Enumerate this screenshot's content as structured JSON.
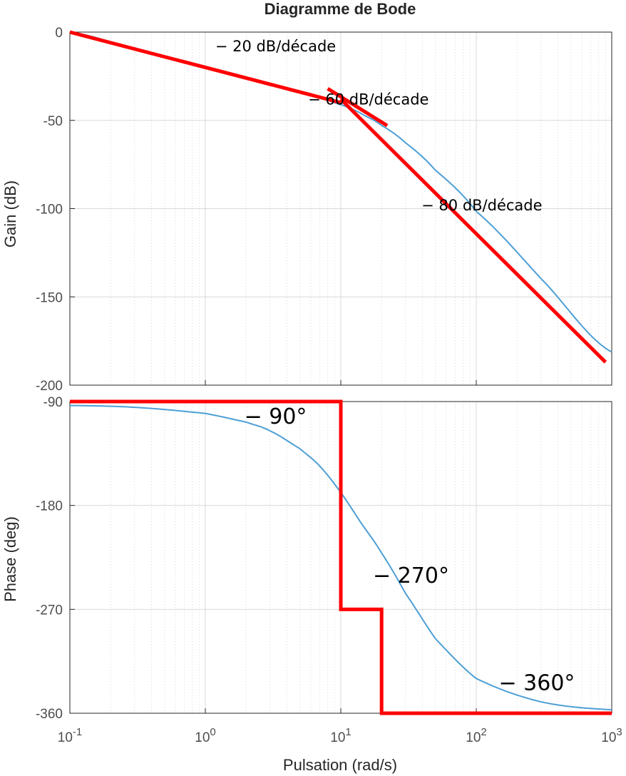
{
  "chart_data": {
    "type": "line",
    "title": "Diagramme de Bode",
    "xlabel": "Pulsation  (rad/s)",
    "x_scale": "log",
    "xlim": [
      0.1,
      1000
    ],
    "x_ticks": [
      {
        "value": 0.1,
        "base": "10",
        "exp": "-1"
      },
      {
        "value": 1,
        "base": "10",
        "exp": "0"
      },
      {
        "value": 10,
        "base": "10",
        "exp": "1"
      },
      {
        "value": 100,
        "base": "10",
        "exp": "2"
      },
      {
        "value": 1000,
        "base": "10",
        "exp": "3"
      }
    ],
    "grid": true,
    "colors": {
      "response": "#4d9fd6",
      "asymptote": "#ff0000",
      "grid": "#d9d9d9",
      "axes": "#262626"
    },
    "panels": [
      {
        "id": "gain",
        "ylabel": "Gain (dB)",
        "ylim": [
          -200,
          0
        ],
        "y_ticks": [
          {
            "value": 0,
            "label": "0"
          },
          {
            "value": -50,
            "label": "-50"
          },
          {
            "value": -100,
            "label": "-100"
          },
          {
            "value": -150,
            "label": "-150"
          },
          {
            "value": -200,
            "label": "-200"
          }
        ],
        "series": [
          {
            "kind": "response",
            "x": [
              0.1,
              0.3,
              1,
              3,
              6,
              8,
              10,
              12,
              15,
              20,
              30,
              50,
              100,
              300,
              1000
            ],
            "y": [
              0,
              -9.5,
              -20,
              -29.6,
              -35.8,
              -38.6,
              -41.1,
              -43.5,
              -47.3,
              -52.9,
              -62.7,
              -78.3,
              -101.6,
              -139.6,
              -181.2
            ]
          },
          {
            "kind": "asymptote",
            "x": [
              0.1,
              10
            ],
            "y": [
              0,
              -40
            ]
          },
          {
            "kind": "asymptote",
            "x": [
              8,
              22
            ],
            "y": [
              -32,
              -53
            ]
          },
          {
            "kind": "asymptote",
            "x": [
              10,
              900
            ],
            "y": [
              -38,
              -187
            ]
          }
        ],
        "annotations": [
          {
            "text": "− 20 dB/décade",
            "x": 3.3,
            "y": -11
          },
          {
            "text": "− 60 dB/décade",
            "x": 16,
            "y": -41
          },
          {
            "text": "− 80 dB/décade",
            "x": 110,
            "y": -101
          }
        ]
      },
      {
        "id": "phase",
        "ylabel": "Phase (deg)",
        "ylim": [
          -360,
          -90
        ],
        "y_ticks": [
          {
            "value": -90,
            "label": "-90"
          },
          {
            "value": -180,
            "label": "-180"
          },
          {
            "value": -270,
            "label": "-270"
          },
          {
            "value": -360,
            "label": "-360"
          }
        ],
        "series": [
          {
            "kind": "response",
            "x": [
              0.1,
              0.3,
              1,
              2,
              3,
              5,
              7,
              10,
              14,
              20,
              30,
              50,
              100,
              300,
              1000
            ],
            "y": [
              -93.4,
              -95,
              -100.3,
              -107.8,
              -115.4,
              -130.9,
              -146,
              -168.7,
              -194.6,
              -221.2,
              -256.1,
              -295.5,
              -329.9,
              -350.1,
              -357
            ]
          },
          {
            "kind": "asymptote",
            "x": [
              0.1,
              10,
              10,
              20,
              20,
              1000
            ],
            "y": [
              -90,
              -90,
              -270,
              -270,
              -360,
              -360
            ]
          }
        ],
        "annotations": [
          {
            "text": "− 90°",
            "x": 3.3,
            "y": -109
          },
          {
            "text": "− 270°",
            "x": 33,
            "y": -247
          },
          {
            "text": "− 360°",
            "x": 280,
            "y": -340
          }
        ]
      }
    ]
  }
}
